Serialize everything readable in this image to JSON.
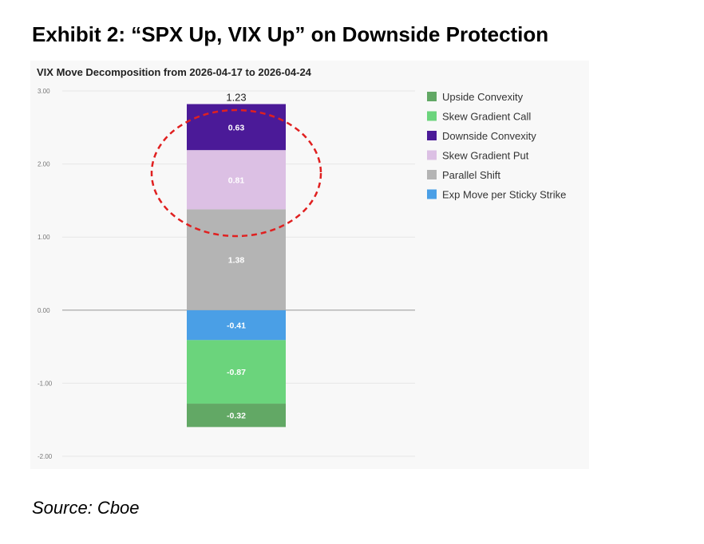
{
  "exhibit_title": "Exhibit 2: “SPX Up, VIX Up” on Downside Protection",
  "source": "Source: Cboe",
  "colors": {
    "panel_bg": "#f8f8f8",
    "highlight_ellipse": "#e02020"
  },
  "chart_data": {
    "type": "bar",
    "stacked": true,
    "title": "VIX Move Decomposition from 2026-04-17 to 2026-04-24",
    "xlabel": "",
    "ylabel": "",
    "ylim": [
      -2.0,
      3.0
    ],
    "yticks": [
      "3.00",
      "2.00",
      "1.00",
      "0.00",
      "-1.00",
      "-2.00"
    ],
    "grid": true,
    "legend_position": "right",
    "total_label": "1.23",
    "series": [
      {
        "name": "Exp Move per Sticky Strike",
        "value": -0.41,
        "color": "#4a9fe6",
        "label": "-0.41"
      },
      {
        "name": "Skew Gradient Call",
        "value": -0.87,
        "color": "#6bd47c",
        "label": "-0.87"
      },
      {
        "name": "Upside Convexity",
        "value": -0.32,
        "color": "#62a865",
        "label": "-0.32"
      },
      {
        "name": "Parallel Shift",
        "value": 1.38,
        "color": "#b4b4b4",
        "label": "1.38"
      },
      {
        "name": "Skew Gradient Put",
        "value": 0.81,
        "color": "#dcc0e4",
        "label": "0.81"
      },
      {
        "name": "Downside Convexity",
        "value": 0.63,
        "color": "#4b1a98",
        "label": "0.63"
      }
    ],
    "legend_order": [
      "Upside Convexity",
      "Skew Gradient Call",
      "Downside Convexity",
      "Skew Gradient Put",
      "Parallel Shift",
      "Exp Move per Sticky Strike"
    ],
    "annotation": "dashed red ellipse around Downside Convexity and Skew Gradient Put"
  }
}
